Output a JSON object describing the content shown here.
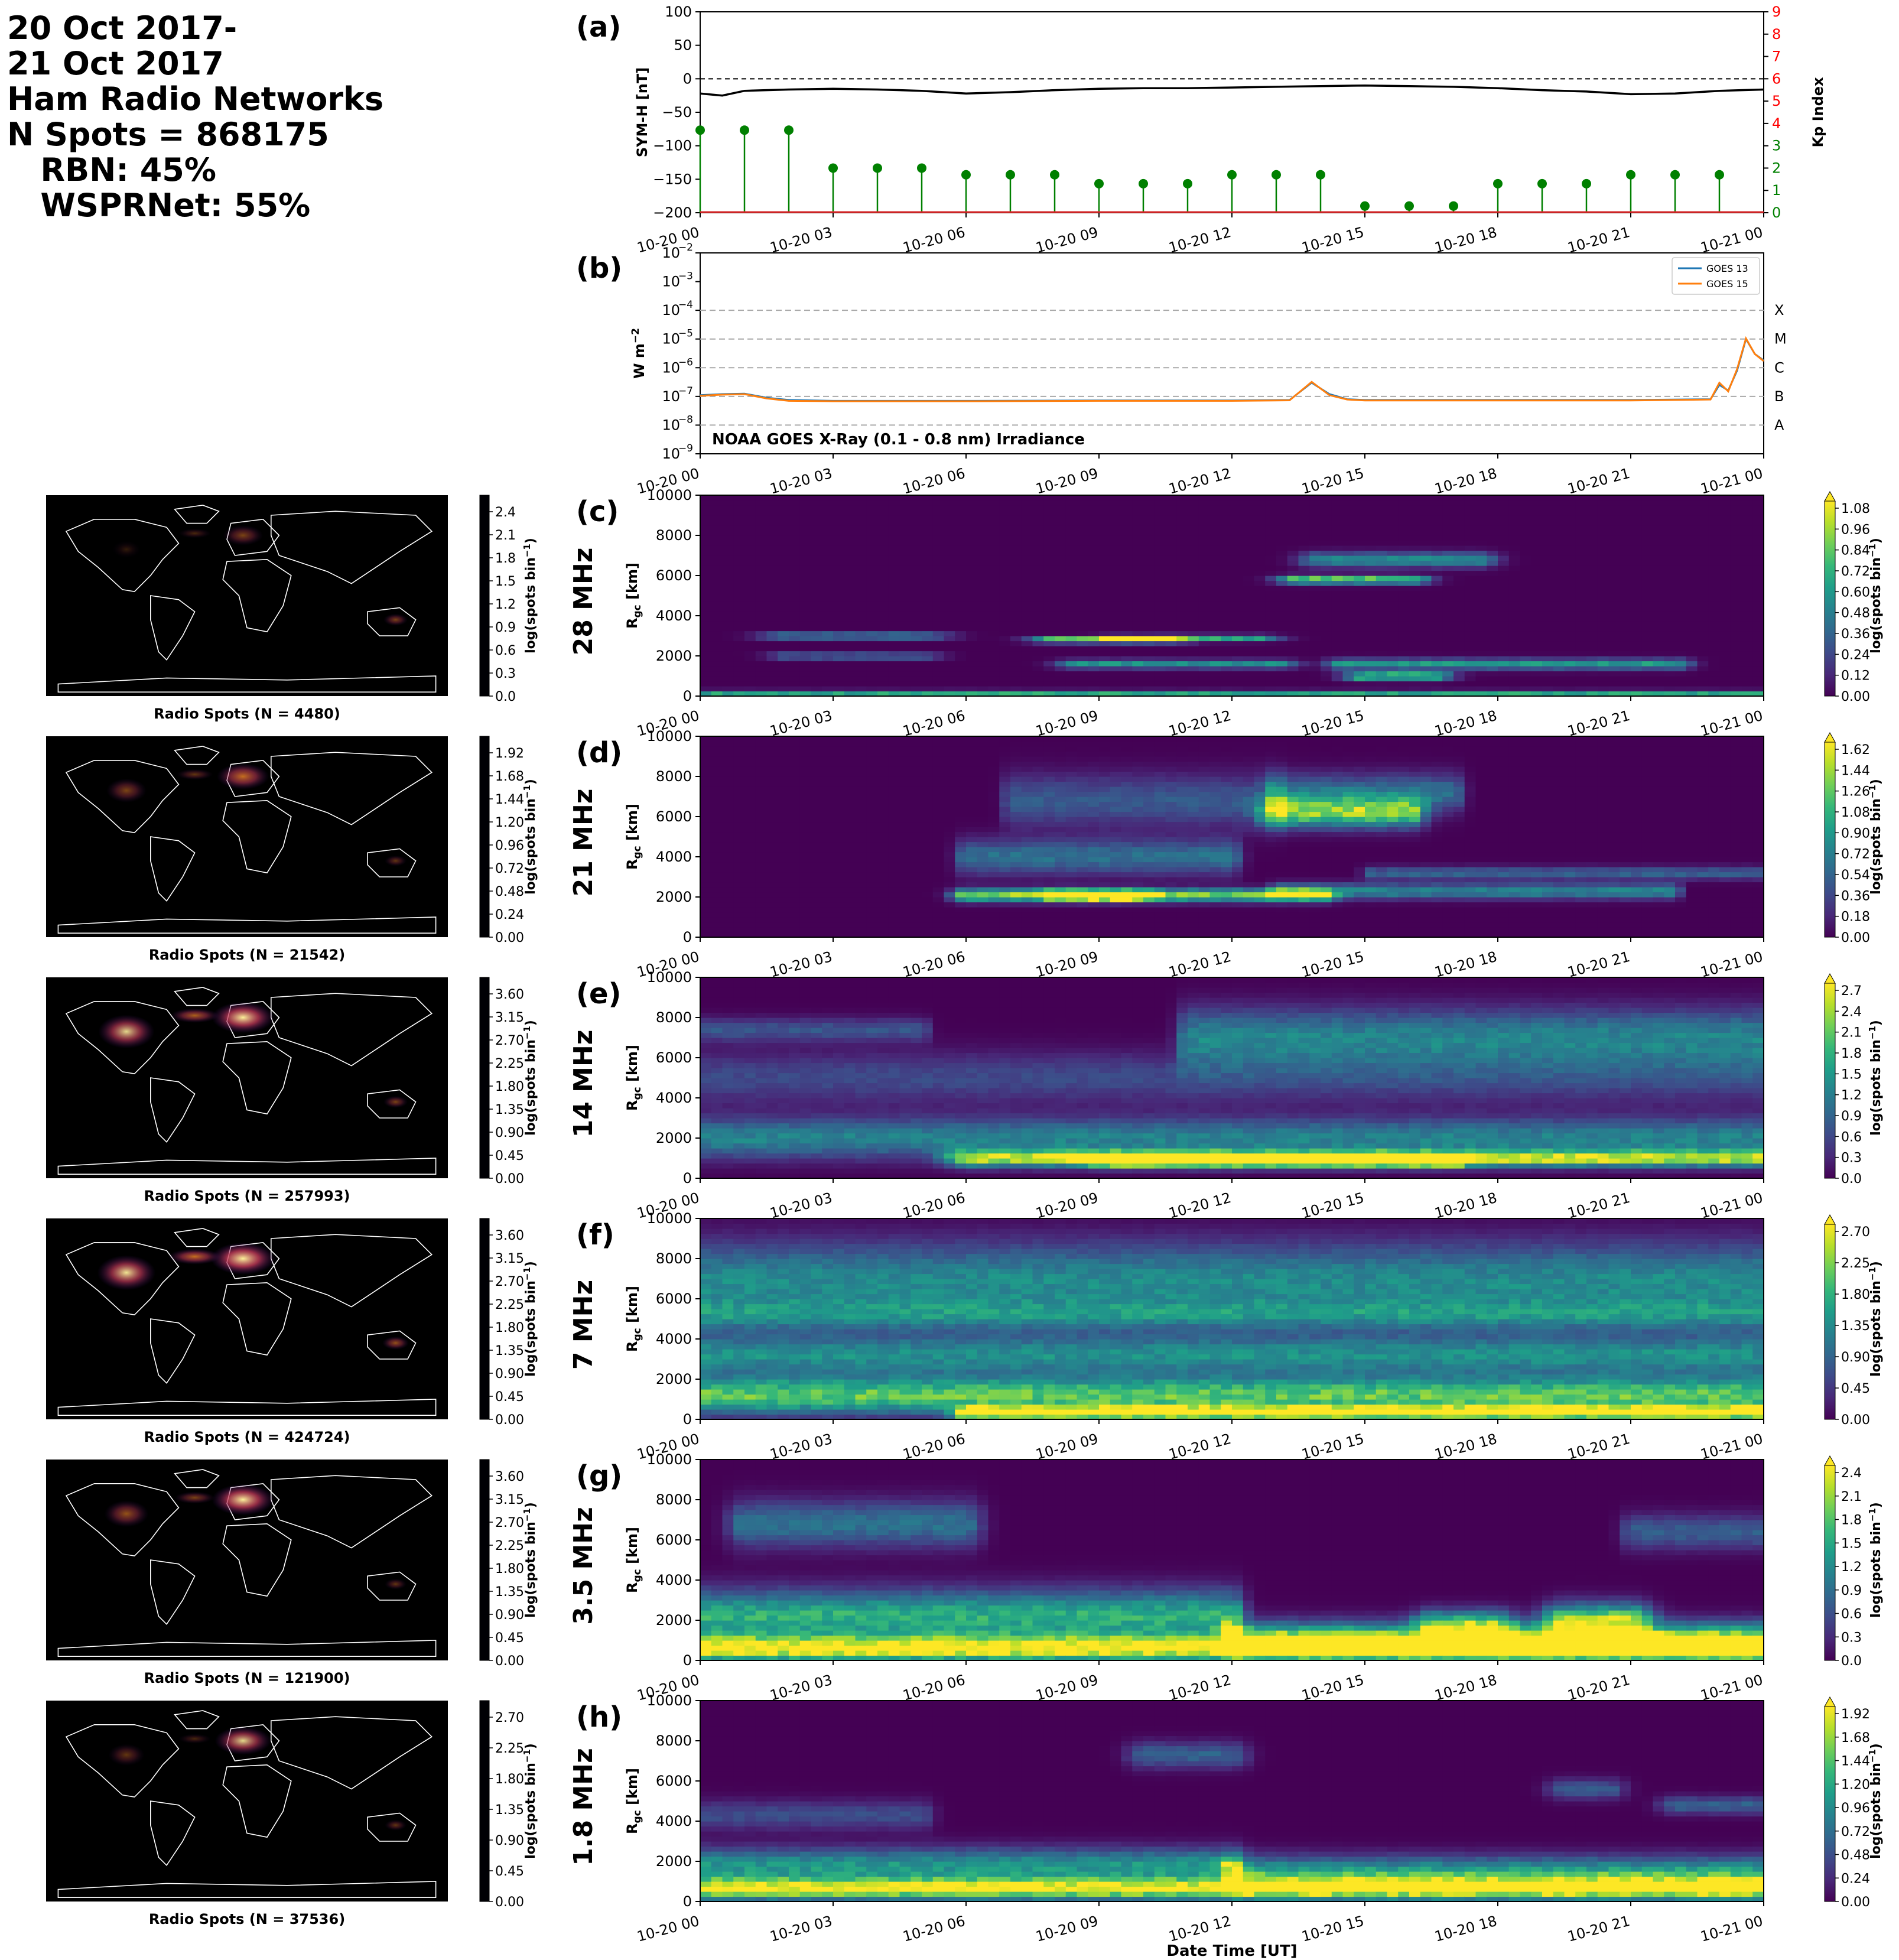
{
  "header": {
    "lines": [
      "20 Oct 2017-",
      "21 Oct 2017",
      "Ham Radio Networks",
      "N Spots = 868175",
      "   RBN: 45%",
      "   WSPRNet: 55%"
    ]
  },
  "time_ticks": [
    "10-20 00",
    "10-20 03",
    "10-20 06",
    "10-20 09",
    "10-20 12",
    "10-20 15",
    "10-20 18",
    "10-20 21",
    "10-21 00"
  ],
  "xlabel": "Date Time [UT]",
  "colors": {
    "symh": "#000000",
    "kp": "#008000",
    "kp_axis": "#ff0000",
    "goes13": "#1f77b4",
    "goes15": "#ff7f0e"
  },
  "panel_a": {
    "label": "(a)",
    "ylabel_left": "SYM-H [nT]",
    "ylabel_right": "Kp Index",
    "yticks_left": [
      "100",
      "50",
      "0",
      "−50",
      "−100",
      "−150",
      "−200"
    ],
    "yticks_right": [
      "0",
      "1",
      "2",
      "3",
      "4",
      "5",
      "6",
      "7",
      "8",
      "9"
    ]
  },
  "panel_b": {
    "label": "(b)",
    "ylabel": "W m",
    "ylabel_sup": "−2",
    "yticks": [
      "−9",
      "−8",
      "−7",
      "−6",
      "−5",
      "−4",
      "−3",
      "−2"
    ],
    "tick_base": "10",
    "classes": [
      "X",
      "M",
      "C",
      "B",
      "A"
    ],
    "legend": [
      "GOES 13",
      "GOES 15"
    ],
    "annotation": "NOAA GOES X-Ray (0.1 - 0.8 nm) Irradiance"
  },
  "band_rows": [
    {
      "label": "(c)",
      "band": "28 MHz",
      "map_caption": "Radio Spots (N = 4480)",
      "map_cbar_ticks": [
        "2.4",
        "2.1",
        "1.8",
        "1.5",
        "1.2",
        "0.9",
        "0.6",
        "0.3",
        "0.0"
      ],
      "cbar_ticks": [
        "1.08",
        "0.96",
        "0.84",
        "0.72",
        "0.60",
        "0.48",
        "0.36",
        "0.24",
        "0.12",
        "0.00"
      ]
    },
    {
      "label": "(d)",
      "band": "21 MHz",
      "map_caption": "Radio Spots (N = 21542)",
      "map_cbar_ticks": [
        "1.92",
        "1.68",
        "1.44",
        "1.20",
        "0.96",
        "0.72",
        "0.48",
        "0.24",
        "0.00"
      ],
      "cbar_ticks": [
        "1.62",
        "1.44",
        "1.26",
        "1.08",
        "0.90",
        "0.72",
        "0.54",
        "0.36",
        "0.18",
        "0.00"
      ]
    },
    {
      "label": "(e)",
      "band": "14 MHz",
      "map_caption": "Radio Spots (N = 257993)",
      "map_cbar_ticks": [
        "3.60",
        "3.15",
        "2.70",
        "2.25",
        "1.80",
        "1.35",
        "0.90",
        "0.45",
        "0.00"
      ],
      "cbar_ticks": [
        "2.7",
        "2.4",
        "2.1",
        "1.8",
        "1.5",
        "1.2",
        "0.9",
        "0.6",
        "0.3",
        "0.0"
      ]
    },
    {
      "label": "(f)",
      "band": "7 MHz",
      "map_caption": "Radio Spots (N = 424724)",
      "map_cbar_ticks": [
        "3.60",
        "3.15",
        "2.70",
        "2.25",
        "1.80",
        "1.35",
        "0.90",
        "0.45",
        "0.00"
      ],
      "cbar_ticks": [
        "2.70",
        "2.25",
        "1.80",
        "1.35",
        "0.90",
        "0.45",
        "0.00"
      ]
    },
    {
      "label": "(g)",
      "band": "3.5 MHz",
      "map_caption": "Radio Spots (N = 121900)",
      "map_cbar_ticks": [
        "3.60",
        "3.15",
        "2.70",
        "2.25",
        "1.80",
        "1.35",
        "0.90",
        "0.45",
        "0.00"
      ],
      "cbar_ticks": [
        "2.4",
        "2.1",
        "1.8",
        "1.5",
        "1.2",
        "0.9",
        "0.6",
        "0.3",
        "0.0"
      ]
    },
    {
      "label": "(h)",
      "band": "1.8 MHz",
      "map_caption": "Radio Spots (N = 37536)",
      "map_cbar_ticks": [
        "2.70",
        "2.25",
        "1.80",
        "1.35",
        "0.90",
        "0.45",
        "0.00"
      ],
      "cbar_ticks": [
        "1.92",
        "1.68",
        "1.44",
        "1.20",
        "0.96",
        "0.72",
        "0.48",
        "0.24",
        "0.00"
      ]
    }
  ],
  "band_yticks": [
    "10000",
    "8000",
    "6000",
    "4000",
    "2000",
    "0"
  ],
  "band_ylabel": "R",
  "band_ylabel_sub": "gc",
  "band_ylabel_unit": " [km]",
  "cbar_label": "log(spots bin",
  "cbar_label_sup": "−1",
  "cbar_label_end": ")",
  "chart_data": [
    {
      "type": "line",
      "panel": "(a)",
      "ylabel": "SYM-H [nT]",
      "ylim": [
        -200,
        100
      ],
      "series": [
        {
          "x_hours": [
            0,
            0.5,
            1,
            2,
            3,
            4,
            5,
            6,
            7,
            8,
            9,
            10,
            11,
            12,
            13,
            14,
            15,
            16,
            17,
            18,
            19,
            20,
            21,
            22,
            23,
            24
          ],
          "values": [
            -22,
            -25,
            -18,
            -16,
            -15,
            -16,
            -18,
            -22,
            -20,
            -17,
            -15,
            -14,
            -14,
            -13,
            -12,
            -11,
            -10,
            -11,
            -12,
            -14,
            -17,
            -19,
            -23,
            -22,
            -18,
            -16
          ]
        }
      ],
      "reference_line": 0
    },
    {
      "type": "bar",
      "panel": "(a)",
      "ylabel": "Kp Index",
      "ylim": [
        0,
        9
      ],
      "x_hours": [
        0,
        1,
        2,
        3,
        4,
        5,
        6,
        7,
        8,
        9,
        10,
        11,
        12,
        13,
        14,
        15,
        16,
        17,
        18,
        19,
        20,
        21,
        22,
        23
      ],
      "values": [
        3.7,
        3.7,
        3.7,
        2.0,
        2.0,
        2.0,
        1.7,
        1.7,
        1.7,
        1.3,
        1.3,
        1.3,
        1.7,
        1.7,
        1.7,
        0.3,
        0.3,
        0.3,
        1.3,
        1.3,
        1.3,
        1.7,
        1.7,
        1.7
      ]
    },
    {
      "type": "line",
      "panel": "(b)",
      "ylabel": "W m^-2",
      "yscale": "log",
      "ylim": [
        1e-09,
        0.01
      ],
      "series": [
        {
          "name": "GOES 13",
          "x_hours": [
            0,
            0.5,
            1,
            1.5,
            2,
            3,
            6,
            9,
            12,
            13.3,
            13.8,
            14.2,
            14.6,
            15,
            18,
            21,
            22.8,
            23,
            23.2,
            23.4,
            23.6,
            23.8,
            24
          ],
          "values": [
            1.1e-07,
            1.2e-07,
            1.25e-07,
            9e-08,
            7.5e-08,
            7e-08,
            7e-08,
            7.2e-08,
            7.2e-08,
            7.5e-08,
            3e-07,
            1.2e-07,
            8e-08,
            7.5e-08,
            7.5e-08,
            7.5e-08,
            8e-08,
            2.5e-07,
            1.6e-07,
            8e-07,
            1e-05,
            3e-06,
            1.8e-06
          ]
        },
        {
          "name": "GOES 15",
          "x_hours": [
            0,
            0.5,
            1,
            1.5,
            2,
            3,
            6,
            9,
            12,
            13.3,
            13.8,
            14.2,
            14.6,
            15,
            18,
            21,
            22.8,
            23,
            23.2,
            23.4,
            23.6,
            23.8,
            24
          ],
          "values": [
            1.05e-07,
            1.15e-07,
            1.2e-07,
            8.5e-08,
            7e-08,
            6.8e-08,
            6.8e-08,
            7e-08,
            7e-08,
            7.3e-08,
            3.2e-07,
            1.1e-07,
            7.8e-08,
            7.2e-08,
            7.2e-08,
            7.2e-08,
            7.8e-08,
            3e-07,
            1.5e-07,
            9e-07,
            1.05e-05,
            3e-06,
            1.7e-06
          ]
        }
      ],
      "flare_class_levels": {
        "A": 1e-08,
        "B": 1e-07,
        "C": 1e-06,
        "M": 1e-05,
        "X": 0.0001
      }
    },
    {
      "type": "heatmap",
      "panel": "(c)",
      "band": "28 MHz",
      "ylabel": "R_gc [km]",
      "ylim": [
        0,
        10000
      ],
      "clim": [
        0,
        1.08
      ],
      "blobs": [
        [
          0,
          24,
          100,
          0.65,
          0.04,
          120
        ],
        [
          2,
          5,
          3000,
          0.8,
          0.7,
          90
        ],
        [
          2,
          5,
          2000,
          0.6,
          0.5,
          90
        ],
        [
          8,
          10.5,
          2800,
          0.95,
          0.6,
          100
        ],
        [
          9.5,
          12.5,
          2900,
          0.65,
          0.6,
          110
        ],
        [
          8.5,
          13,
          1600,
          0.55,
          0.5,
          150
        ],
        [
          13.5,
          16,
          5800,
          0.9,
          0.5,
          140
        ],
        [
          14,
          17.5,
          6800,
          0.55,
          0.5,
          250
        ],
        [
          14.5,
          22,
          1600,
          0.6,
          0.4,
          180
        ],
        [
          15,
          16.5,
          1000,
          0.9,
          0.5,
          140
        ]
      ]
    },
    {
      "type": "heatmap",
      "panel": "(d)",
      "band": "21 MHz",
      "ylabel": "R_gc [km]",
      "ylim": [
        0,
        10000
      ],
      "clim": [
        0,
        1.62
      ],
      "blobs": [
        [
          6,
          14,
          2100,
          1.3,
          0.35,
          220
        ],
        [
          8,
          10,
          2100,
          1.55,
          0.35,
          170
        ],
        [
          6,
          12,
          4000,
          0.6,
          0.25,
          600
        ],
        [
          13,
          22,
          2300,
          0.75,
          0.15,
          260
        ],
        [
          13,
          16,
          6200,
          1.2,
          0.4,
          500
        ],
        [
          13,
          17,
          7200,
          0.6,
          0.25,
          650
        ],
        [
          7,
          13,
          6800,
          0.45,
          0.2,
          900
        ],
        [
          15,
          24,
          3200,
          0.5,
          0.1,
          220
        ]
      ]
    },
    {
      "type": "heatmap",
      "panel": "(e)",
      "band": "14 MHz",
      "ylabel": "R_gc [km]",
      "ylim": [
        0,
        10000
      ],
      "clim": [
        0,
        2.7
      ],
      "blobs": [
        [
          0,
          24,
          2000,
          1.2,
          0.3,
          700
        ],
        [
          6,
          24,
          1000,
          2.2,
          0.5,
          280
        ],
        [
          9,
          17,
          900,
          2.7,
          0.4,
          200
        ],
        [
          11,
          24,
          7000,
          1.2,
          0.25,
          1000
        ],
        [
          0,
          24,
          5000,
          0.6,
          0.2,
          900
        ],
        [
          0,
          5,
          7400,
          0.7,
          0.2,
          400
        ]
      ]
    },
    {
      "type": "heatmap",
      "panel": "(f)",
      "band": "7 MHz",
      "ylabel": "R_gc [km]",
      "ylim": [
        0,
        10000
      ],
      "clim": [
        0,
        2.7
      ],
      "blobs": [
        [
          0,
          24,
          1200,
          2.0,
          0.25,
          650
        ],
        [
          6,
          24,
          350,
          2.7,
          0.3,
          220
        ],
        [
          0,
          24,
          3200,
          1.3,
          0.25,
          700
        ],
        [
          0,
          24,
          6800,
          1.3,
          0.25,
          1400
        ],
        [
          0,
          24,
          5200,
          0.8,
          0.2,
          500
        ]
      ]
    },
    {
      "type": "heatmap",
      "panel": "(g)",
      "band": "3.5 MHz",
      "ylabel": "R_gc [km]",
      "ylim": [
        0,
        10000
      ],
      "clim": [
        0,
        2.4
      ],
      "blobs": [
        [
          0,
          24,
          600,
          2.3,
          0.4,
          450
        ],
        [
          0,
          12,
          2200,
          1.5,
          0.3,
          900
        ],
        [
          12,
          24,
          1100,
          1.6,
          0.3,
          600
        ],
        [
          19.5,
          21,
          2000,
          1.8,
          0.5,
          600
        ],
        [
          1,
          6,
          6800,
          0.9,
          0.4,
          800
        ],
        [
          16.5,
          18,
          1800,
          1.4,
          0.4,
          500
        ],
        [
          21,
          24,
          6400,
          0.7,
          0.25,
          600
        ]
      ]
    },
    {
      "type": "heatmap",
      "panel": "(h)",
      "band": "1.8 MHz",
      "ylabel": "R_gc [km]",
      "ylim": [
        0,
        10000
      ],
      "clim": [
        0,
        1.92
      ],
      "blobs": [
        [
          0,
          24,
          650,
          1.85,
          0.4,
          380
        ],
        [
          0,
          12,
          1800,
          1.0,
          0.3,
          600
        ],
        [
          12,
          24,
          1400,
          1.1,
          0.3,
          600
        ],
        [
          10,
          12,
          7300,
          0.6,
          0.4,
          450
        ],
        [
          22,
          24,
          4800,
          0.6,
          0.4,
          300
        ],
        [
          19.5,
          20.5,
          5600,
          0.55,
          0.4,
          350
        ],
        [
          0,
          5,
          4300,
          0.45,
          0.3,
          500
        ]
      ]
    }
  ]
}
